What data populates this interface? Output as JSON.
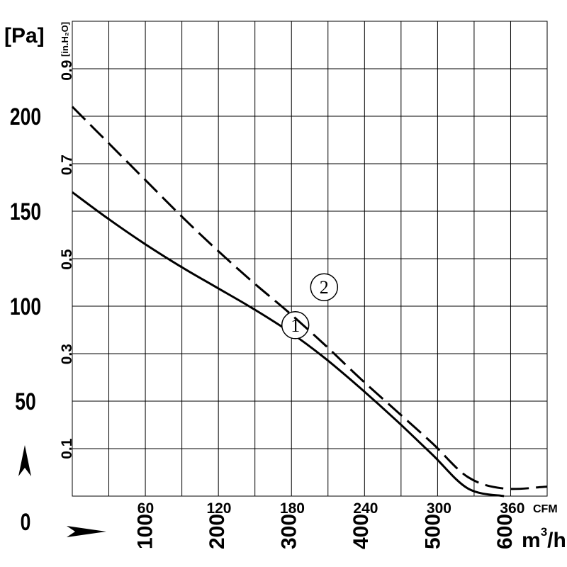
{
  "chart_data": {
    "type": "line",
    "title": "",
    "x_unit_cfm": "CFM",
    "x_unit_m3h": "m³/h",
    "x_unit_m3h_base": "m",
    "x_unit_m3h_sup": "3",
    "x_unit_m3h_tail": "/h",
    "y_unit_pa": "[Pa]",
    "y_unit_inh2o": "[in.H₂O]",
    "xlim_m3h": [
      0,
      660
    ],
    "ylim_pa": [
      0,
      250
    ],
    "grid": true,
    "x_ticks_cfm": [
      "60",
      "120",
      "180",
      "240",
      "300",
      "360"
    ],
    "x_ticks_m3h": [
      "100",
      "200",
      "300",
      "400",
      "500",
      "600"
    ],
    "y_ticks_pa": [
      "0",
      "50",
      "100",
      "150",
      "200"
    ],
    "y_ticks_inh2o": [
      "0.1",
      "0.3",
      "0.5",
      "0.7",
      "0.9"
    ],
    "series": [
      {
        "name": "①",
        "style": "solid",
        "x": [
          0,
          50,
          100,
          150,
          200,
          250,
          300,
          350,
          400,
          450,
          500,
          550,
          600
        ],
        "y": [
          160,
          146,
          133,
          121,
          110,
          99,
          87,
          73,
          57,
          40,
          22,
          4,
          0
        ]
      },
      {
        "name": "②",
        "style": "dashed",
        "x": [
          0,
          50,
          100,
          150,
          200,
          250,
          300,
          350,
          400,
          450,
          500,
          550,
          600,
          660
        ],
        "y": [
          205,
          186,
          167,
          148,
          130,
          113,
          97,
          80,
          62,
          45,
          28,
          10,
          4,
          5
        ]
      }
    ]
  }
}
